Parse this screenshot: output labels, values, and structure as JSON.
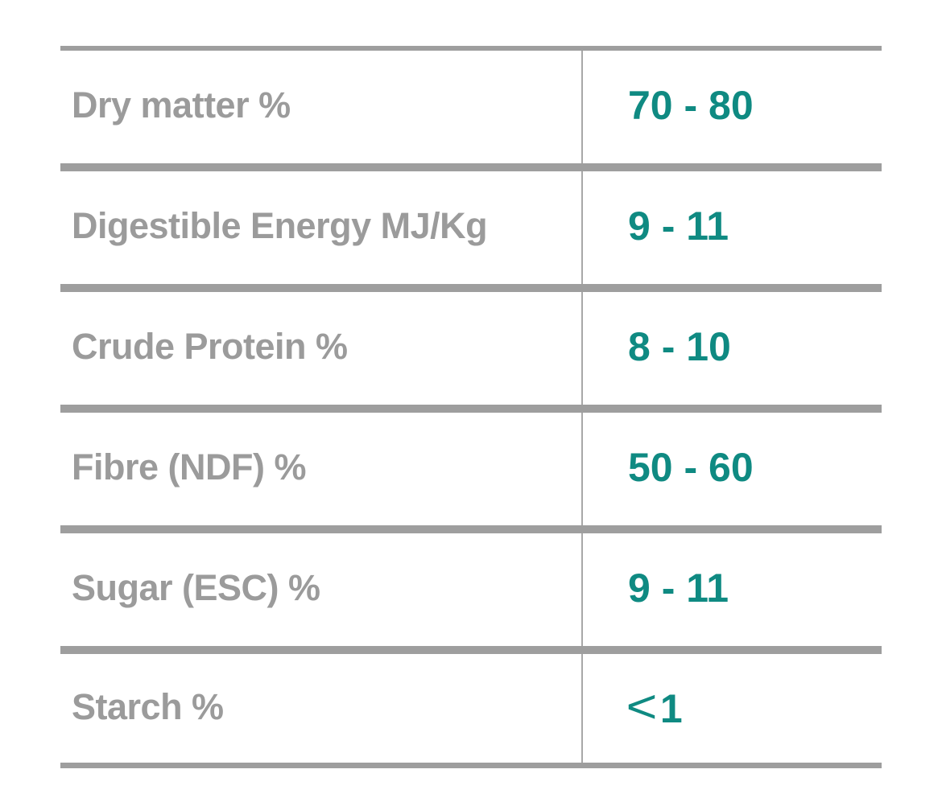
{
  "accent_color": "#0f8a82",
  "rows": [
    {
      "label": "Dry matter %",
      "value": "70 - 80"
    },
    {
      "label": "Digestible Energy MJ/Kg",
      "value": "9 - 11"
    },
    {
      "label": "Crude Protein %",
      "value": "8 - 10"
    },
    {
      "label": "Fibre (NDF) %",
      "value": "50 - 60"
    },
    {
      "label": "Sugar (ESC) %",
      "value": "9 - 11"
    },
    {
      "label": "Starch %",
      "value_symbol": "<",
      "value": "1"
    }
  ]
}
